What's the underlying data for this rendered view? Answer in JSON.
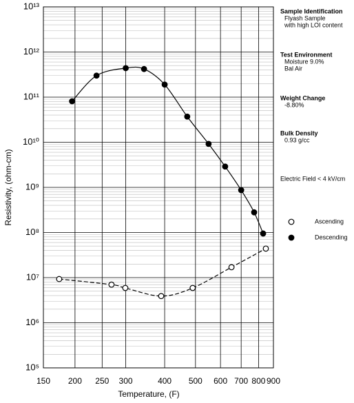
{
  "chart_data": {
    "type": "scatter",
    "x_label": "Temperature, (F)",
    "y_label": "Resistivity, (ohm-cm)",
    "xscale": "inverse-absolute-temperature",
    "yscale": "log",
    "xlim": [
      150,
      900
    ],
    "xticks": [
      150,
      200,
      250,
      300,
      400,
      500,
      600,
      700,
      800,
      900
    ],
    "ylim": [
      100000,
      10000000000000
    ],
    "yticks": [
      {
        "value": 100000,
        "label": "10⁵"
      },
      {
        "value": 1000000,
        "label": "10⁶"
      },
      {
        "value": 10000000,
        "label": "10⁷"
      },
      {
        "value": 100000000,
        "label": "10⁸"
      },
      {
        "value": 1000000000,
        "label": "10⁹"
      },
      {
        "value": 10000000000,
        "label": "10¹⁰"
      },
      {
        "value": 100000000000,
        "label": "10¹¹"
      },
      {
        "value": 1000000000000,
        "label": "10¹²"
      },
      {
        "value": 10000000000000,
        "label": "10¹³"
      }
    ],
    "grid": true,
    "series": [
      {
        "name": "Ascending",
        "color": "#000000",
        "marker": "open",
        "line_style": "dashed",
        "x": [
          174,
          269,
          299,
          390,
          490,
          651,
          847
        ],
        "values": [
          9300000,
          7000000,
          5900000,
          3900000,
          5900000,
          17000000,
          44000000
        ]
      },
      {
        "name": "Descending",
        "color": "#000000",
        "marker": "filled",
        "line_style": "solid",
        "x": [
          195,
          239,
          300,
          344,
          400,
          471,
          550,
          621,
          700,
          773,
          829
        ],
        "values": [
          81000000000,
          300000000000,
          440000000000,
          420000000000,
          190000000000,
          37000000000,
          9200000000,
          2900000000,
          870000000,
          280000000,
          95000000
        ]
      }
    ],
    "annotations": [
      {
        "heading": "Sample Identification",
        "lines": [
          "Flyash Sample",
          "with high LOI content"
        ]
      },
      {
        "heading": "Test Environment",
        "lines": [
          "Moisture   9.0%",
          "Bal    Air"
        ]
      },
      {
        "heading": "Weight Change",
        "lines": [
          "-8.80%"
        ]
      },
      {
        "heading": "Bulk Density",
        "lines": [
          "0.93 g/cc"
        ]
      },
      {
        "lines": [
          "Electric Field < 4 kV/cm"
        ]
      }
    ]
  }
}
